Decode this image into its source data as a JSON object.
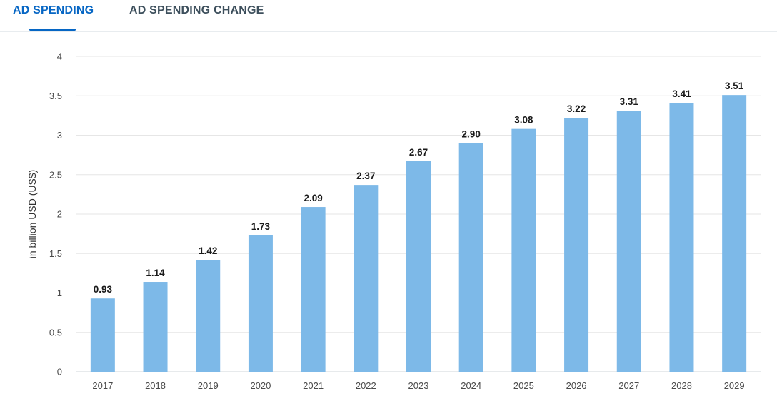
{
  "tabs": [
    {
      "label": "AD SPENDING",
      "active": true
    },
    {
      "label": "AD SPENDING CHANGE",
      "active": false
    }
  ],
  "colors": {
    "accent": "#0666c4",
    "bar": "#7db9e8",
    "grid": "#e6e6e6"
  },
  "chart_data": {
    "type": "bar",
    "title": "",
    "xlabel": "",
    "ylabel": "in billion USD (US$)",
    "ylim": [
      0,
      4
    ],
    "yticks": [
      "0",
      "0.5",
      "1",
      "1.5",
      "2",
      "2.5",
      "3",
      "3.5",
      "4"
    ],
    "grid": true,
    "categories": [
      "2017",
      "2018",
      "2019",
      "2020",
      "2021",
      "2022",
      "2023",
      "2024",
      "2025",
      "2026",
      "2027",
      "2028",
      "2029"
    ],
    "values": [
      0.93,
      1.14,
      1.42,
      1.73,
      2.09,
      2.37,
      2.67,
      2.9,
      3.08,
      3.22,
      3.31,
      3.41,
      3.51
    ],
    "labels": [
      "0.93",
      "1.14",
      "1.42",
      "1.73",
      "2.09",
      "2.37",
      "2.67",
      "2.90",
      "3.08",
      "3.22",
      "3.31",
      "3.41",
      "3.51"
    ]
  }
}
